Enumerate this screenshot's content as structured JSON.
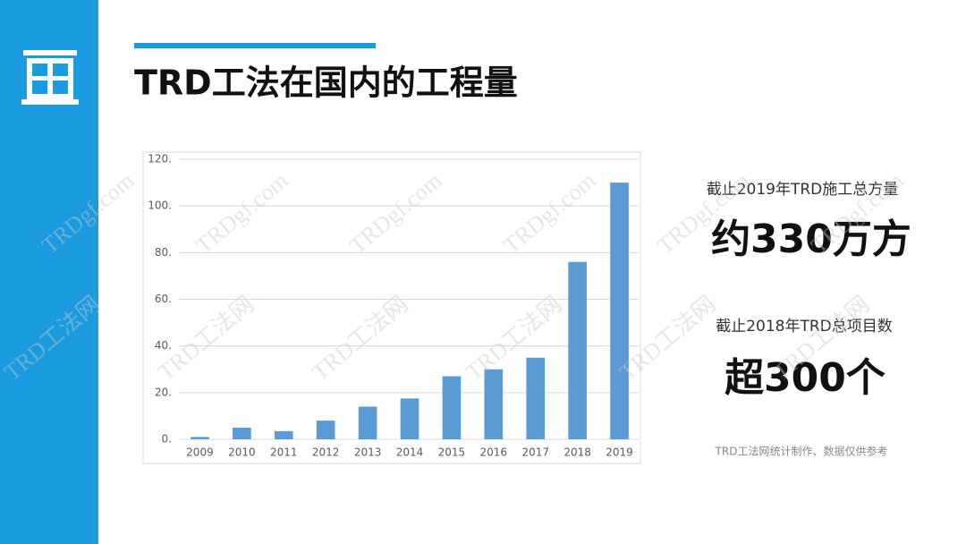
{
  "header": {
    "title": "TRD工法在国内的工程量"
  },
  "chart_data": {
    "type": "bar",
    "categories": [
      "2009",
      "2010",
      "2011",
      "2012",
      "2013",
      "2014",
      "2015",
      "2016",
      "2017",
      "2018",
      "2019"
    ],
    "values": [
      1,
      5,
      3.5,
      8,
      14,
      17.5,
      27,
      30,
      35,
      76,
      110
    ],
    "color": "#5b9bd5",
    "ylim": [
      0,
      120
    ],
    "yticks": [
      {
        "value": 0,
        "label": "0."
      },
      {
        "value": 20,
        "label": "20."
      },
      {
        "value": 40,
        "label": "40."
      },
      {
        "value": 60,
        "label": "60."
      },
      {
        "value": 80,
        "label": "80."
      },
      {
        "value": 100,
        "label": "100."
      },
      {
        "value": 120,
        "label": "120."
      }
    ],
    "grid": true
  },
  "stats": [
    {
      "label": "截止2019年TRD施工总方量",
      "value": "约330万方"
    },
    {
      "label": "截止2018年TRD总项目数",
      "value": "超300个"
    }
  ],
  "note": "TRD工法网统计制作、数据仅供参考",
  "watermark": [
    "TRDgf.com",
    "TRD工法网"
  ]
}
